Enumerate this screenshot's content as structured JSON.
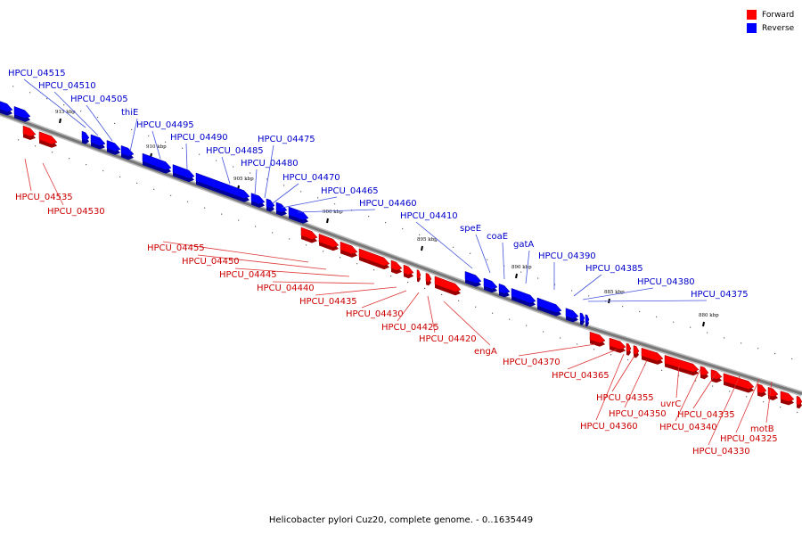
{
  "legend": [
    {
      "label": "Forward",
      "color": "#ff0000"
    },
    {
      "label": "Reverse",
      "color": "#0000ff"
    }
  ],
  "caption": "Helicobacter pylori Cuz20, complete genome. - 0..1635449",
  "colors": {
    "forward": "#ff0000",
    "reverse": "#0000ff",
    "forward_label": "#cc0000",
    "reverse_label": "#0000cc",
    "backbone": "#777777"
  },
  "ruler": [
    {
      "label": "915 kbp",
      "pos": 915
    },
    {
      "label": "910 kbp",
      "pos": 910
    },
    {
      "label": "905 kbp",
      "pos": 905
    },
    {
      "label": "900 kbp",
      "pos": 900
    },
    {
      "label": "895 kbp",
      "pos": 895
    },
    {
      "label": "890 kbp",
      "pos": 890
    },
    {
      "label": "885 kbp",
      "pos": 885
    },
    {
      "label": "880 kbp",
      "pos": 880
    }
  ],
  "features": [
    {
      "name": "HPCU_04515",
      "strand": "reverse"
    },
    {
      "name": "HPCU_04510",
      "strand": "reverse"
    },
    {
      "name": "HPCU_04505",
      "strand": "reverse"
    },
    {
      "name": "thiE",
      "strand": "reverse"
    },
    {
      "name": "HPCU_04495",
      "strand": "reverse"
    },
    {
      "name": "HPCU_04490",
      "strand": "reverse"
    },
    {
      "name": "HPCU_04485",
      "strand": "reverse"
    },
    {
      "name": "HPCU_04480",
      "strand": "reverse"
    },
    {
      "name": "HPCU_04475",
      "strand": "reverse"
    },
    {
      "name": "HPCU_04470",
      "strand": "reverse"
    },
    {
      "name": "HPCU_04465",
      "strand": "reverse"
    },
    {
      "name": "HPCU_04460",
      "strand": "reverse"
    },
    {
      "name": "HPCU_04410",
      "strand": "reverse"
    },
    {
      "name": "speE",
      "strand": "reverse"
    },
    {
      "name": "coaE",
      "strand": "reverse"
    },
    {
      "name": "gatA",
      "strand": "reverse"
    },
    {
      "name": "HPCU_04390",
      "strand": "reverse"
    },
    {
      "name": "HPCU_04385",
      "strand": "reverse"
    },
    {
      "name": "HPCU_04380",
      "strand": "reverse"
    },
    {
      "name": "HPCU_04375",
      "strand": "reverse"
    },
    {
      "name": "HPCU_04535",
      "strand": "forward"
    },
    {
      "name": "HPCU_04530",
      "strand": "forward"
    },
    {
      "name": "HPCU_04455",
      "strand": "forward"
    },
    {
      "name": "HPCU_04450",
      "strand": "forward"
    },
    {
      "name": "HPCU_04445",
      "strand": "forward"
    },
    {
      "name": "HPCU_04440",
      "strand": "forward"
    },
    {
      "name": "HPCU_04435",
      "strand": "forward"
    },
    {
      "name": "HPCU_04430",
      "strand": "forward"
    },
    {
      "name": "HPCU_04425",
      "strand": "forward"
    },
    {
      "name": "HPCU_04420",
      "strand": "forward"
    },
    {
      "name": "engA",
      "strand": "forward"
    },
    {
      "name": "HPCU_04370",
      "strand": "forward"
    },
    {
      "name": "HPCU_04365",
      "strand": "forward"
    },
    {
      "name": "HPCU_04360",
      "strand": "forward"
    },
    {
      "name": "HPCU_04355",
      "strand": "forward"
    },
    {
      "name": "HPCU_04350",
      "strand": "forward"
    },
    {
      "name": "uvrC",
      "strand": "forward"
    },
    {
      "name": "HPCU_04340",
      "strand": "forward"
    },
    {
      "name": "HPCU_04335",
      "strand": "forward"
    },
    {
      "name": "HPCU_04330",
      "strand": "forward"
    },
    {
      "name": "HPCU_04325",
      "strand": "forward"
    },
    {
      "name": "motB",
      "strand": "forward"
    }
  ]
}
